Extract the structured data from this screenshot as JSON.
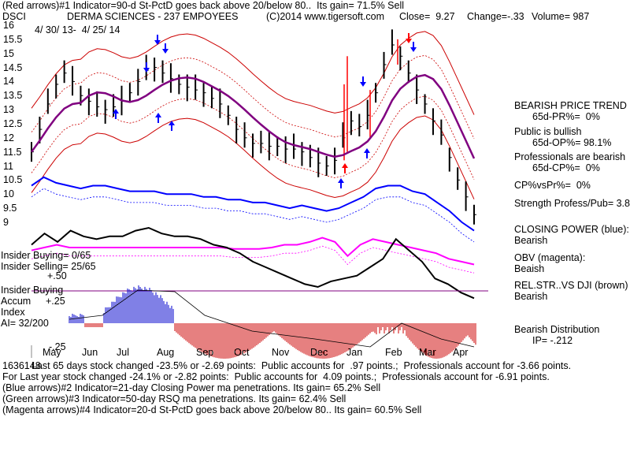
{
  "header": {
    "line1": "(Red arrows)#1 Indicator=90-d St-PctD goes back above 20/below 80..  Its gain= 71.5% Sell",
    "ticker": "DSCI",
    "company": "DERMA SCIENCES - 237 EMPOYEES",
    "copyright": "(C)2014 www.tigersoft.com",
    "close": "Close=  9.27",
    "change": "Change=-.33",
    "volume": "Volume= 987",
    "date_range": "4/ 30/ 13-  4/ 25/ 14"
  },
  "left_labels": {
    "insider_buying_count": "Insider Buying= 0/65",
    "insider_selling_count": "Insider Selling= 25/65",
    "plus50": "+.50",
    "insider_buying": "Insider Buying",
    "accum": "Accum",
    "plus25": "+.25",
    "index": "Index",
    "ai": "AI= 32/200",
    "minus25": "-.25"
  },
  "right_panel": {
    "trend_title": "BEARISH PRICE TREND",
    "pr_pct": "65d-PR%=  0%",
    "public_title": "Public is bullish",
    "op_pct": "65d-OP%= 98.1%",
    "prof_title": "Professionals are bearish",
    "cp_pct": "65d-CP%=  0%",
    "cp_vs_pr": "CP%vsPr%=  0%",
    "strength": "Strength Profess/Pub= 3.8",
    "closing_power": "CLOSING POWER (blue):",
    "closing_power_val": "Bearish",
    "obv": "OBV (magenta):",
    "obv_val": "Beaish",
    "relstr": "REL.STR..VS DJI (brown)",
    "relstr_val": "Bearish",
    "distribution": "Bearish Distribution",
    "ip": "IP= -.212"
  },
  "footer": {
    "line1": "Last 65 days stock changed -23.5% or -2.69 points:  Public accounts for  .97 points.;  Professionals account for -3.66 points.",
    "line1_overlap": "1636148",
    "line2": "For Last year stock changed -24.1% or -2.82 points:  Public accounts for  4.09 points.;  Professionals account for -6.91 points.",
    "line3": "(Blue arrows)#2 Indicator=21-day Closing Power ma penetrations. Its gain= 65.2% Sell",
    "line4": "(Green arrows)#3 Indicator=50-day RSQ ma penetrations. Its gain= 62.4% Sell",
    "line5": "(Magenta arrows)#4 Indicator=20-d St-PctD goes back above 20/below 80.. Its gain= 60.5% Sell"
  },
  "colors": {
    "price": "#000000",
    "bollinger": "#cc0000",
    "ma": "#800080",
    "closing_power": "#0000ff",
    "obv": "#ff00ff",
    "relstr": "#000000",
    "accum_pos": "#0000cc",
    "accum_neg": "#cc0000",
    "arrow_red": "#ff0000",
    "arrow_blue": "#0000ff"
  },
  "chart_data": {
    "type": "line",
    "x_tick_labels": [
      "May",
      "Jun",
      "Jul",
      "Aug",
      "Sep",
      "Oct",
      "Nov",
      "Dec",
      "Jan",
      "Feb",
      "Mar",
      "Apr"
    ],
    "y_tick_labels": [
      "16",
      "15.5",
      "15",
      "14.5",
      "14",
      "13.5",
      "13",
      "12.5",
      "12",
      "11.5",
      "11",
      "10.5",
      "10",
      "9.5",
      "9"
    ],
    "ylim": [
      9,
      16
    ],
    "series": [
      {
        "values": [
          11.5,
          12.3,
          13.2,
          13.9,
          14.3,
          14.0,
          13.5,
          13.3,
          13.1,
          13.0,
          13.1,
          13.3,
          13.6,
          14.0,
          14.4,
          14.5,
          14.3,
          14.1,
          13.9,
          13.8,
          13.7,
          13.6,
          13.4,
          13.2,
          12.8,
          12.3,
          12.0,
          11.8,
          11.8,
          11.7,
          11.7,
          11.6,
          11.6,
          11.5,
          11.3,
          11.1,
          11.0,
          11.2,
          12.0,
          12.6,
          12.4,
          12.8,
          13.6,
          14.6,
          15.3,
          14.9,
          14.3,
          13.7,
          13.2,
          12.6,
          12.1,
          11.3,
          10.5,
          9.9,
          9.27
        ]
      },
      {
        "values": [
          10.3,
          10.6,
          10.4,
          10.3,
          10.2,
          10.3,
          10.3,
          10.2,
          10.1,
          10.1,
          10.1,
          10.0,
          10.0,
          10.0,
          9.9,
          9.9,
          9.8,
          9.8,
          9.7,
          9.7,
          9.6,
          9.5,
          9.6,
          9.5,
          9.4,
          9.5,
          9.7,
          9.9,
          10.2,
          10.3,
          10.3,
          10.1,
          10.0,
          9.7,
          9.4,
          9.0,
          8.7
        ]
      },
      {
        "values": [
          8.0,
          8.1,
          8.2,
          8.1,
          8.1,
          8.1,
          8.1,
          8.1,
          8.1,
          8.1,
          8.1,
          8.1,
          8.1,
          8.1,
          8.1,
          8.1,
          8.05,
          8.05,
          8.05,
          8.1,
          8.2,
          8.2,
          8.3,
          8.45,
          8.3,
          7.8,
          8.2,
          8.4,
          8.3,
          8.2,
          8.1,
          8.0,
          7.9,
          7.7,
          7.6,
          7.5
        ]
      },
      {
        "values": [
          8.2,
          8.6,
          8.3,
          8.7,
          8.5,
          8.4,
          8.5,
          8.5,
          8.7,
          8.8,
          8.6,
          8.5,
          8.5,
          8.4,
          8.2,
          8.1,
          7.9,
          7.6,
          7.4,
          7.2,
          7.0,
          6.8,
          6.7,
          6.9,
          7.0,
          7.1,
          7.4,
          7.7,
          8.4,
          8.0,
          7.6,
          7.0,
          6.8,
          6.5,
          6.3
        ]
      }
    ],
    "accum_index_range": [
      -0.25,
      0.5
    ],
    "insider_buying": "0/65",
    "insider_selling": "25/65",
    "ai": "32/200"
  }
}
